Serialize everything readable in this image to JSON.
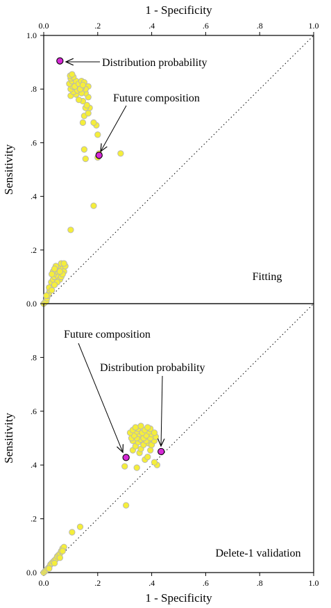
{
  "chart_data": [
    {
      "type": "scatter",
      "panel_label": "Fitting",
      "xlabel": "1 - Specificity",
      "ylabel": "Sensitivity",
      "xlim": [
        0,
        1
      ],
      "ylim": [
        0,
        1
      ],
      "x_ticks": [
        "0.0",
        ".2",
        ".4",
        ".6",
        ".8",
        "1.0"
      ],
      "y_ticks": [
        "0.0",
        ".2",
        ".4",
        ".6",
        ".8",
        "1.0"
      ],
      "grid": false,
      "reference_line": "diagonal",
      "colors": {
        "points": "#f5ee3b",
        "highlight": "#d62ad6"
      },
      "points": [
        [
          0.0,
          0.0
        ],
        [
          0.005,
          0.005
        ],
        [
          0.01,
          0.01
        ],
        [
          0.012,
          0.02
        ],
        [
          0.015,
          0.03
        ],
        [
          0.02,
          0.04
        ],
        [
          0.022,
          0.05
        ],
        [
          0.025,
          0.06
        ],
        [
          0.03,
          0.07
        ],
        [
          0.028,
          0.08
        ],
        [
          0.035,
          0.09
        ],
        [
          0.04,
          0.1
        ],
        [
          0.045,
          0.11
        ],
        [
          0.05,
          0.12
        ],
        [
          0.055,
          0.13
        ],
        [
          0.06,
          0.14
        ],
        [
          0.065,
          0.15
        ],
        [
          0.07,
          0.13
        ],
        [
          0.075,
          0.12
        ],
        [
          0.08,
          0.14
        ],
        [
          0.035,
          0.12
        ],
        [
          0.045,
          0.14
        ],
        [
          0.03,
          0.11
        ],
        [
          0.055,
          0.1
        ],
        [
          0.06,
          0.09
        ],
        [
          0.065,
          0.1
        ],
        [
          0.07,
          0.11
        ],
        [
          0.04,
          0.13
        ],
        [
          0.05,
          0.08
        ],
        [
          0.06,
          0.12
        ],
        [
          0.02,
          0.06
        ],
        [
          0.03,
          0.05
        ],
        [
          0.01,
          0.03
        ],
        [
          0.04,
          0.07
        ],
        [
          0.075,
          0.15
        ],
        [
          0.1,
          0.275
        ],
        [
          0.185,
          0.365
        ],
        [
          0.155,
          0.54
        ],
        [
          0.15,
          0.575
        ],
        [
          0.2,
          0.545
        ],
        [
          0.205,
          0.56
        ],
        [
          0.285,
          0.56
        ],
        [
          0.2,
          0.63
        ],
        [
          0.195,
          0.665
        ],
        [
          0.185,
          0.675
        ],
        [
          0.145,
          0.675
        ],
        [
          0.15,
          0.7
        ],
        [
          0.165,
          0.71
        ],
        [
          0.17,
          0.73
        ],
        [
          0.155,
          0.73
        ],
        [
          0.16,
          0.74
        ],
        [
          0.145,
          0.755
        ],
        [
          0.13,
          0.76
        ],
        [
          0.165,
          0.77
        ],
        [
          0.155,
          0.785
        ],
        [
          0.14,
          0.785
        ],
        [
          0.12,
          0.78
        ],
        [
          0.1,
          0.775
        ],
        [
          0.11,
          0.79
        ],
        [
          0.125,
          0.795
        ],
        [
          0.165,
          0.81
        ],
        [
          0.155,
          0.8
        ],
        [
          0.14,
          0.805
        ],
        [
          0.1,
          0.8
        ],
        [
          0.108,
          0.81
        ],
        [
          0.118,
          0.82
        ],
        [
          0.095,
          0.82
        ],
        [
          0.105,
          0.83
        ],
        [
          0.12,
          0.83
        ],
        [
          0.1,
          0.84
        ],
        [
          0.11,
          0.845
        ],
        [
          0.098,
          0.85
        ],
        [
          0.105,
          0.855
        ],
        [
          0.115,
          0.81
        ],
        [
          0.13,
          0.82
        ],
        [
          0.14,
          0.83
        ],
        [
          0.15,
          0.825
        ],
        [
          0.135,
          0.8
        ],
        [
          0.145,
          0.815
        ]
      ],
      "highlighted": [
        {
          "x": 0.06,
          "y": 0.905,
          "annotation": "Distribution probability"
        },
        {
          "x": 0.205,
          "y": 0.553,
          "annotation": "Future composition"
        }
      ]
    },
    {
      "type": "scatter",
      "panel_label": "Delete-1 validation",
      "xlabel": "1 - Specificity",
      "ylabel": "Sensitivity",
      "xlim": [
        0,
        1
      ],
      "ylim": [
        0,
        1
      ],
      "x_ticks": [
        "0.0",
        ".2",
        ".4",
        ".6",
        ".8",
        "1.0"
      ],
      "y_ticks": [
        "0.0",
        ".2",
        ".4",
        ".6",
        ".8",
        "1.0"
      ],
      "grid": false,
      "reference_line": "diagonal",
      "colors": {
        "points": "#f5ee3b",
        "highlight": "#d62ad6"
      },
      "points": [
        [
          0.0,
          0.0
        ],
        [
          0.005,
          0.005
        ],
        [
          0.01,
          0.01
        ],
        [
          0.015,
          0.015
        ],
        [
          0.02,
          0.02
        ],
        [
          0.025,
          0.03
        ],
        [
          0.03,
          0.035
        ],
        [
          0.035,
          0.04
        ],
        [
          0.04,
          0.045
        ],
        [
          0.045,
          0.05
        ],
        [
          0.05,
          0.06
        ],
        [
          0.055,
          0.065
        ],
        [
          0.06,
          0.07
        ],
        [
          0.065,
          0.08
        ],
        [
          0.07,
          0.09
        ],
        [
          0.075,
          0.095
        ],
        [
          0.02,
          0.015
        ],
        [
          0.04,
          0.035
        ],
        [
          0.06,
          0.055
        ],
        [
          0.07,
          0.08
        ],
        [
          0.105,
          0.15
        ],
        [
          0.135,
          0.17
        ],
        [
          0.305,
          0.25
        ],
        [
          0.3,
          0.395
        ],
        [
          0.345,
          0.39
        ],
        [
          0.42,
          0.4
        ],
        [
          0.41,
          0.41
        ],
        [
          0.375,
          0.42
        ],
        [
          0.385,
          0.43
        ],
        [
          0.355,
          0.445
        ],
        [
          0.33,
          0.455
        ],
        [
          0.395,
          0.455
        ],
        [
          0.36,
          0.46
        ],
        [
          0.34,
          0.47
        ],
        [
          0.37,
          0.475
        ],
        [
          0.39,
          0.48
        ],
        [
          0.4,
          0.475
        ],
        [
          0.35,
          0.485
        ],
        [
          0.33,
          0.49
        ],
        [
          0.38,
          0.49
        ],
        [
          0.41,
          0.49
        ],
        [
          0.36,
          0.495
        ],
        [
          0.325,
          0.5
        ],
        [
          0.345,
          0.5
        ],
        [
          0.37,
          0.5
        ],
        [
          0.395,
          0.5
        ],
        [
          0.415,
          0.505
        ],
        [
          0.335,
          0.51
        ],
        [
          0.355,
          0.515
        ],
        [
          0.38,
          0.51
        ],
        [
          0.4,
          0.515
        ],
        [
          0.32,
          0.52
        ],
        [
          0.345,
          0.525
        ],
        [
          0.365,
          0.52
        ],
        [
          0.39,
          0.525
        ],
        [
          0.41,
          0.52
        ],
        [
          0.33,
          0.53
        ],
        [
          0.35,
          0.535
        ],
        [
          0.375,
          0.53
        ],
        [
          0.395,
          0.535
        ],
        [
          0.34,
          0.54
        ],
        [
          0.36,
          0.545
        ],
        [
          0.385,
          0.54
        ]
      ],
      "highlighted": [
        {
          "x": 0.305,
          "y": 0.428,
          "annotation": "Future composition"
        },
        {
          "x": 0.435,
          "y": 0.45,
          "annotation": "Distribution probability"
        }
      ]
    }
  ]
}
